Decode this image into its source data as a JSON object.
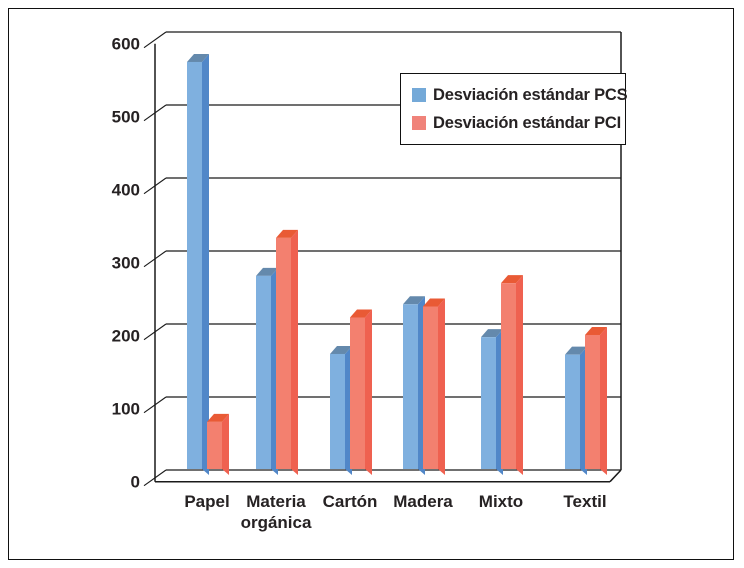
{
  "figure": {
    "kind": "3d-clustered-column-chart",
    "background_color": "#ffffff",
    "frame_color": "#111111",
    "axis_color": "#1a1a1a",
    "text_color": "#262223"
  },
  "chart_data": {
    "type": "bar",
    "title": "",
    "xlabel": "",
    "ylabel": "",
    "ylim": [
      0,
      600
    ],
    "ytick_interval": 100,
    "yticks": [
      "0",
      "100",
      "200",
      "300",
      "400",
      "500",
      "600"
    ],
    "grid": true,
    "legend_position": "upper-right-inside",
    "effect": "3d-extruded-bars",
    "categories": [
      "Papel",
      "Materia orgánica",
      "Cartón",
      "Madera",
      "Mixto",
      "Textil"
    ],
    "series": [
      {
        "name": "Desviación estándar PCS",
        "values": [
          575,
          282,
          175,
          243,
          198,
          174
        ],
        "color_front": "#7FB0DF",
        "color_side": "#5187C8",
        "color_top": "#6489AC",
        "legend_swatch": "#74A9D8"
      },
      {
        "name": "Desviación estándar PCI",
        "values": [
          82,
          334,
          225,
          240,
          272,
          201
        ],
        "color_front": "#F3806F",
        "color_side": "#EF6150",
        "color_top": "#E95A35",
        "legend_swatch": "#F0837A"
      }
    ]
  }
}
